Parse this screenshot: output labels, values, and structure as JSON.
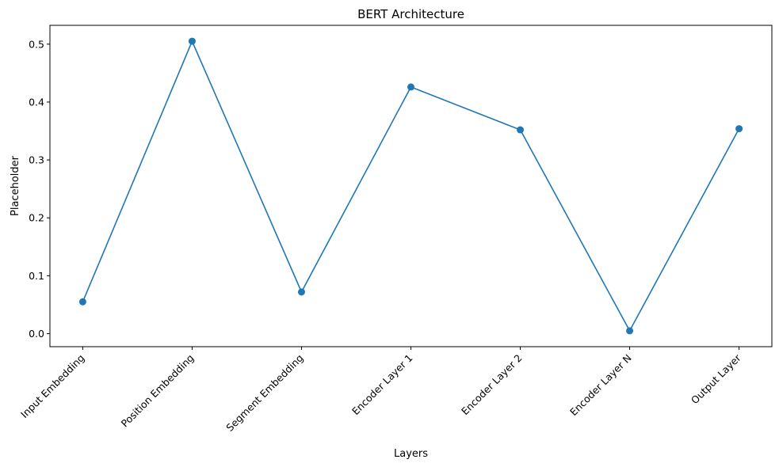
{
  "chart_data": {
    "type": "line",
    "title": "BERT Architecture",
    "xlabel": "Layers",
    "ylabel": "Placeholder",
    "categories": [
      "Input Embedding",
      "Position Embedding",
      "Segment Embedding",
      "Encoder Layer 1",
      "Encoder Layer 2",
      "Encoder Layer N",
      "Output Layer"
    ],
    "series": [
      {
        "values": [
          0.055,
          0.505,
          0.072,
          0.426,
          0.352,
          0.005,
          0.354
        ],
        "color": "#1f77b4",
        "marker": "circle"
      }
    ],
    "ylim": [
      -0.0225,
      0.5325
    ],
    "yticks": [
      0.0,
      0.1,
      0.2,
      0.3,
      0.4,
      0.5
    ],
    "ytick_labels": [
      "0.0",
      "0.1",
      "0.2",
      "0.3",
      "0.4",
      "0.5"
    ],
    "grid": false,
    "legend": "none"
  }
}
